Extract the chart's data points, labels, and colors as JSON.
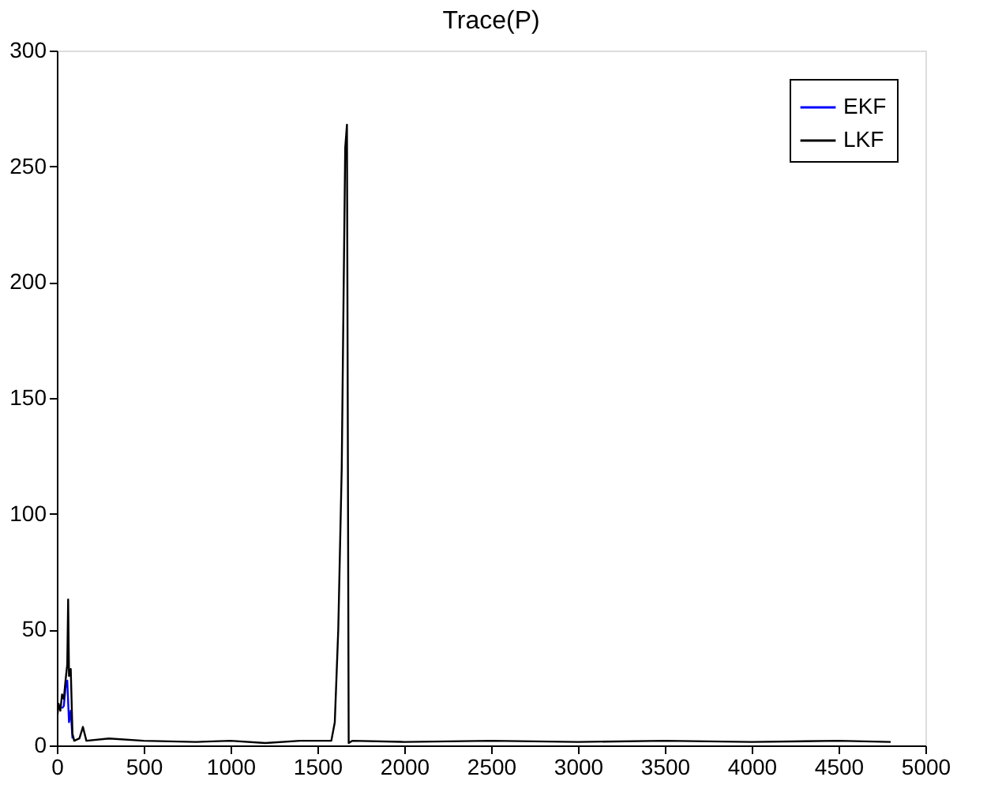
{
  "chart_data": {
    "type": "line",
    "title": "Trace(P)",
    "xlim": [
      0,
      5000
    ],
    "ylim": [
      0,
      300
    ],
    "xticks": [
      0,
      500,
      1000,
      1500,
      2000,
      2500,
      3000,
      3500,
      4000,
      4500,
      5000
    ],
    "yticks": [
      0,
      50,
      100,
      150,
      200,
      250,
      300
    ],
    "grid": false,
    "legend": "top right",
    "marker": "none",
    "line_style": "solid",
    "series": [
      {
        "name": "EKF",
        "color": "#0000ff",
        "x": [
          30,
          40,
          50,
          60,
          70,
          80,
          90
        ],
        "values": [
          16,
          17,
          25,
          28,
          10,
          15,
          3
        ]
      },
      {
        "name": "LKF",
        "color": "#000000",
        "x": [
          0,
          10,
          20,
          30,
          40,
          50,
          60,
          65,
          70,
          80,
          90,
          100,
          130,
          150,
          170,
          300,
          500,
          800,
          1000,
          1200,
          1400,
          1580,
          1600,
          1620,
          1640,
          1650,
          1660,
          1670,
          1680,
          1700,
          2000,
          2500,
          3000,
          3500,
          4000,
          4500,
          4800
        ],
        "values": [
          10,
          18,
          15,
          22,
          20,
          28,
          35,
          63,
          30,
          33,
          5,
          2,
          3,
          8,
          2,
          3,
          2,
          1.5,
          2,
          1,
          2,
          2,
          10,
          50,
          120,
          190,
          258,
          268,
          1,
          2,
          1.5,
          2,
          1.5,
          2,
          1.5,
          2,
          1.5
        ]
      }
    ]
  }
}
